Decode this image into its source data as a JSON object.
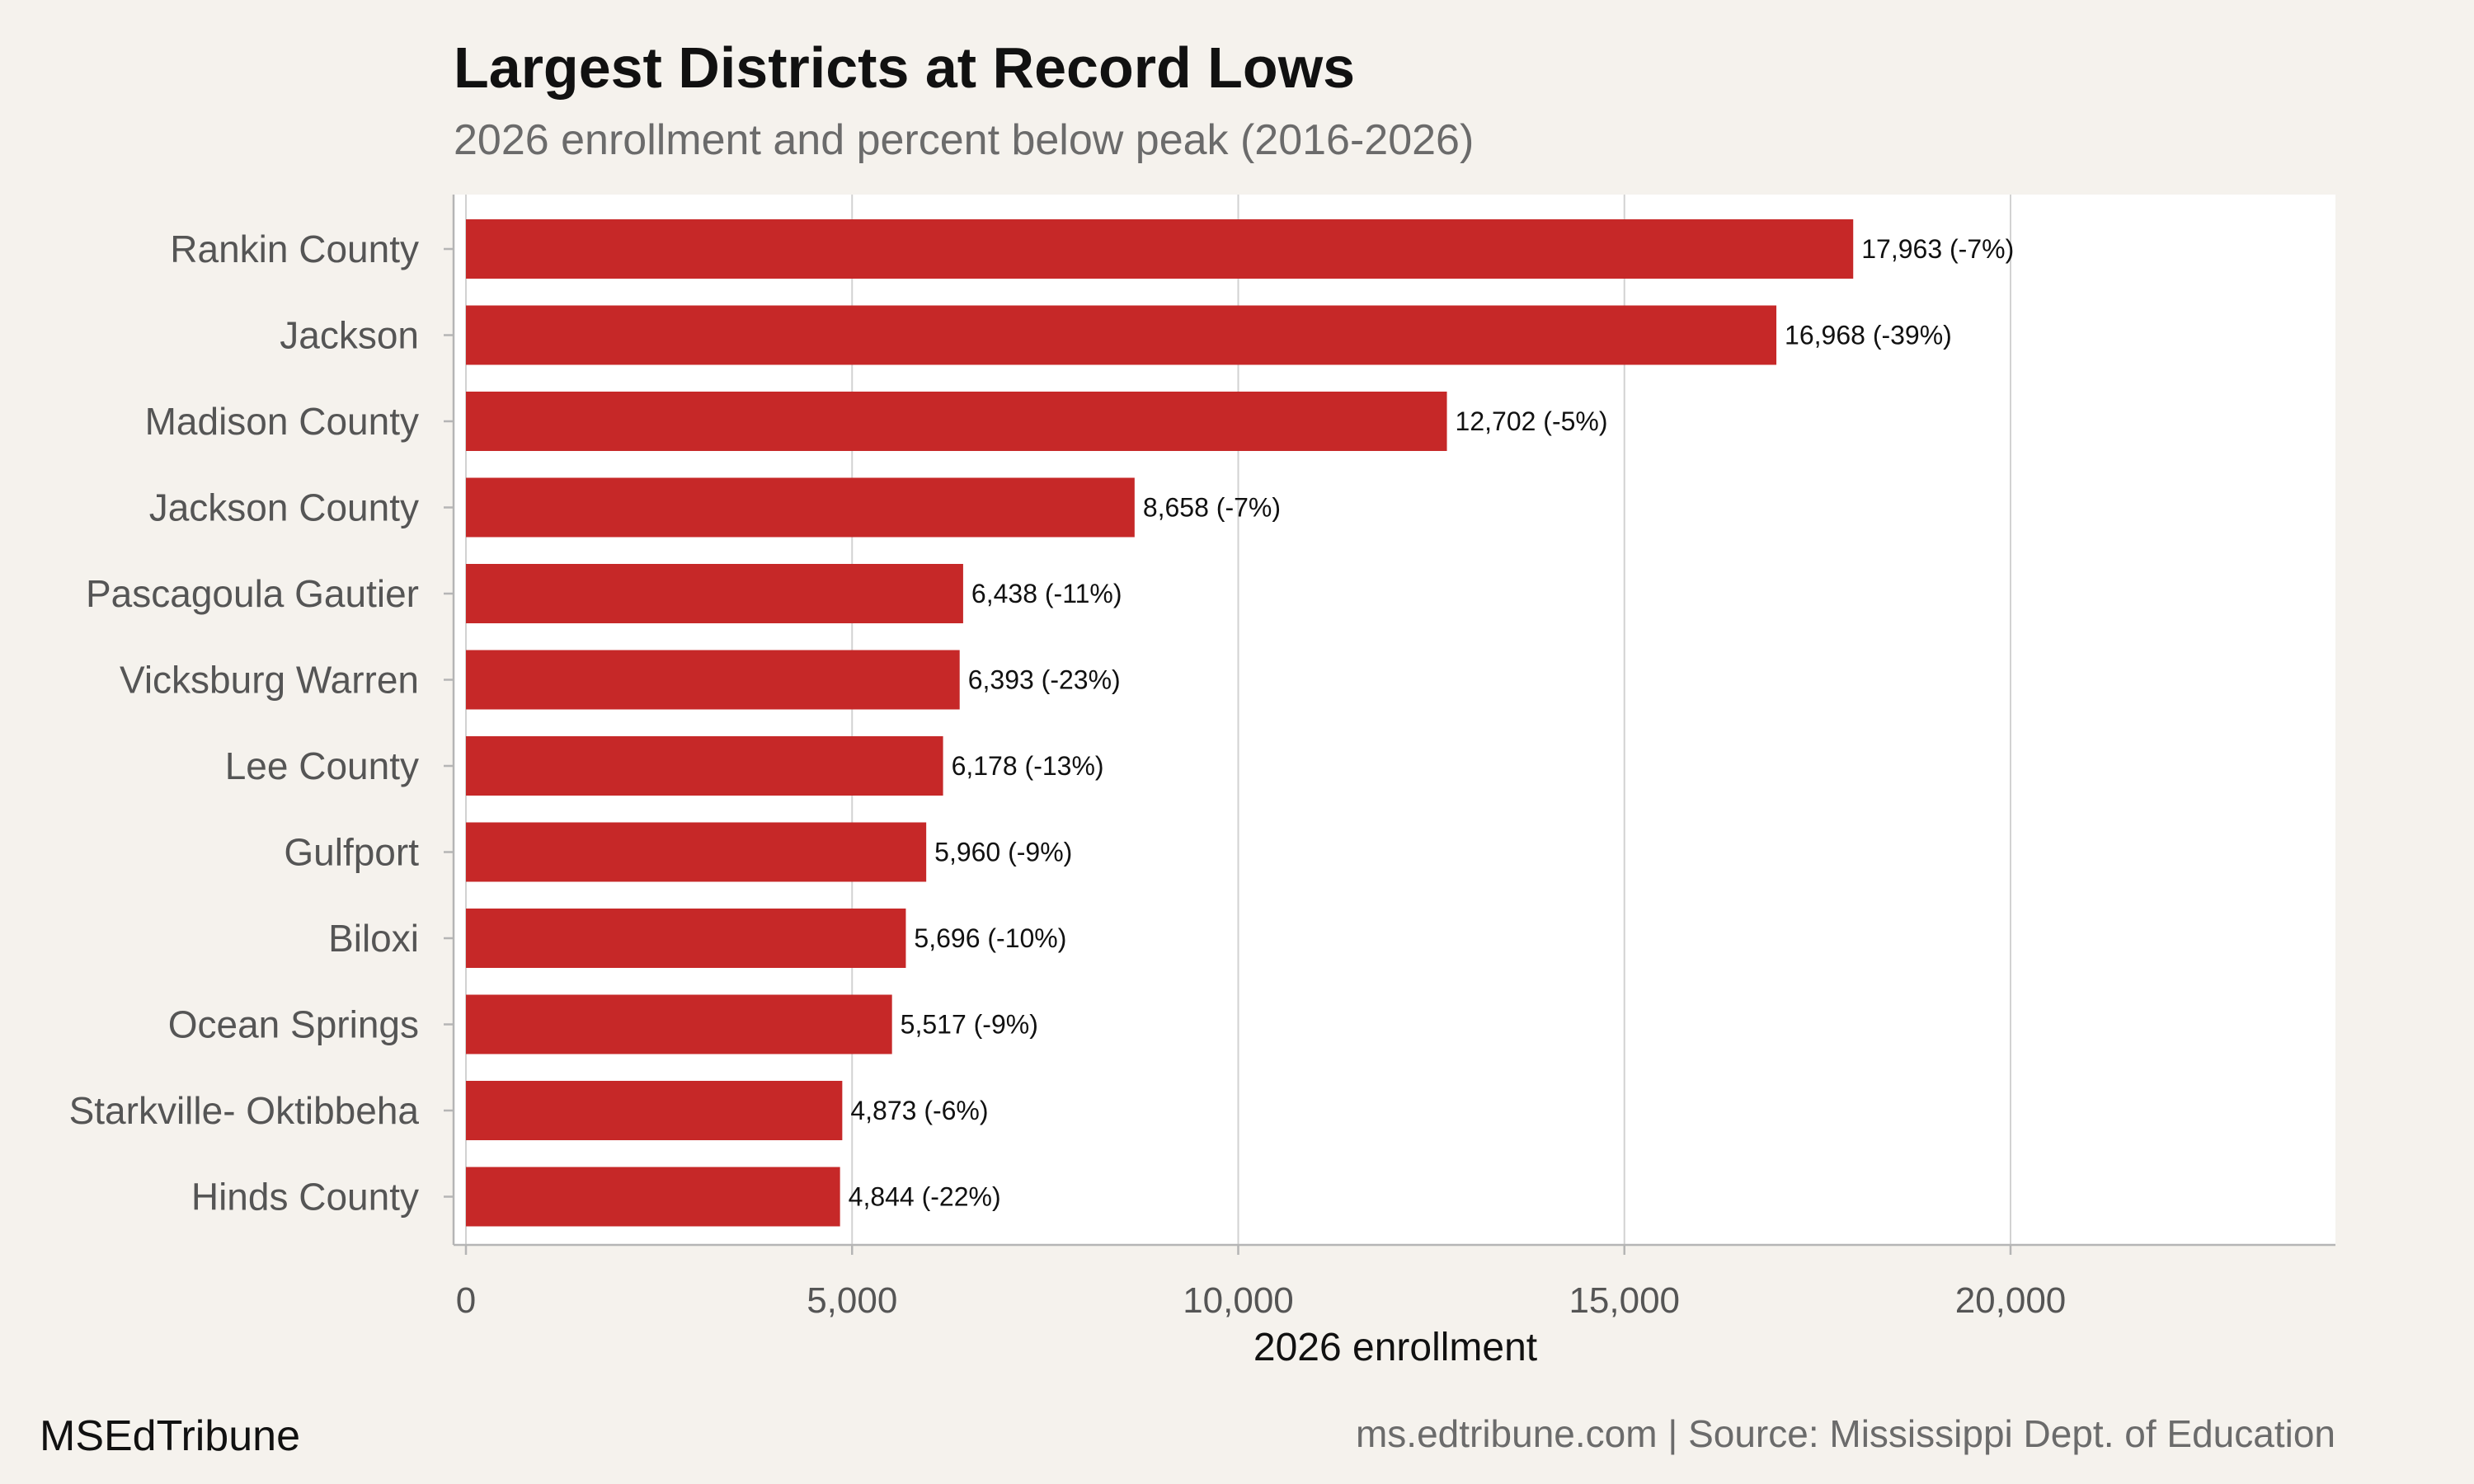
{
  "chart_data": {
    "type": "bar",
    "orientation": "horizontal",
    "title": "Largest Districts at Record Lows",
    "subtitle": "2026 enrollment and percent below peak (2016-2026)",
    "xlabel": "2026 enrollment",
    "ylabel": "",
    "xlim": [
      0,
      24000
    ],
    "xticks": [
      0,
      5000,
      10000,
      15000,
      20000
    ],
    "xtick_labels": [
      "0",
      "5,000",
      "10,000",
      "15,000",
      "20,000"
    ],
    "grid": "vertical",
    "legend": "none",
    "bar_color": "#c62828",
    "categories": [
      "Rankin County",
      "Jackson",
      "Madison County",
      "Jackson County",
      "Pascagoula Gautier",
      "Vicksburg Warren",
      "Lee County",
      "Gulfport",
      "Biloxi",
      "Ocean Springs",
      "Starkville- Oktibbeha",
      "Hinds County"
    ],
    "values": [
      17963,
      16968,
      12702,
      8658,
      6438,
      6393,
      6178,
      5960,
      5696,
      5517,
      4873,
      4844
    ],
    "data_labels": [
      "17,963 (-7%)",
      "16,968 (-39%)",
      "12,702 (-5%)",
      "8,658 (-7%)",
      "6,438 (-11%)",
      "6,393 (-23%)",
      "6,178 (-13%)",
      "5,960 (-9%)",
      "5,696 (-10%)",
      "5,517 (-9%)",
      "4,873 (-6%)",
      "4,844 (-22%)"
    ]
  },
  "footer": {
    "brand": "MSEdTribune",
    "source": "ms.edtribune.com | Source: Mississippi Dept. of Education"
  }
}
